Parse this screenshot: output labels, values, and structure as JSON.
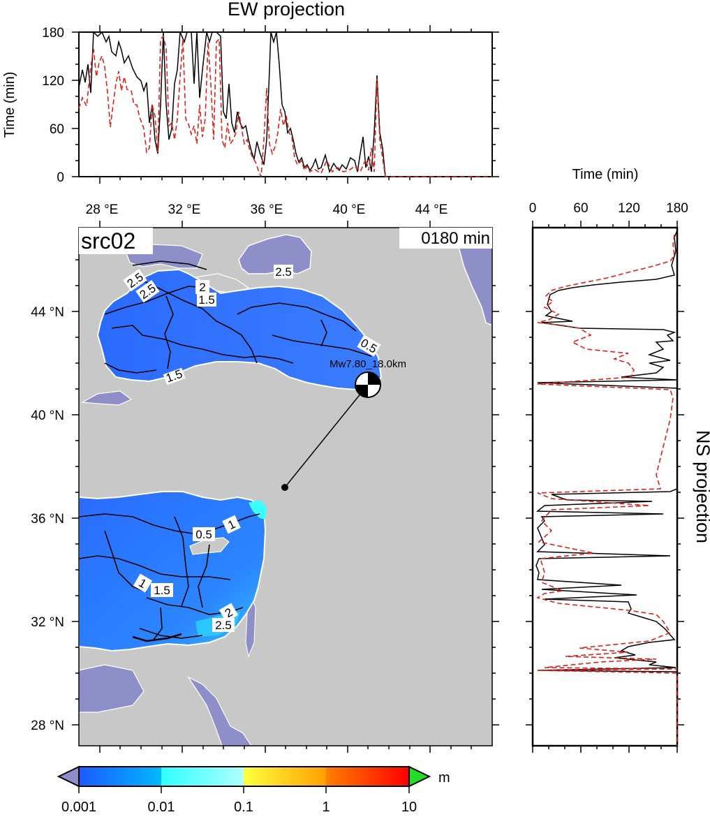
{
  "ew_panel": {
    "title": "EW projection",
    "ylabel": "Time (min)",
    "yticks": [
      "0",
      "60",
      "120",
      "180"
    ],
    "xticks": [
      "28 °E",
      "32 °E",
      "36 °E",
      "40 °E",
      "44 °E"
    ]
  },
  "ns_panel": {
    "title": "NS projection",
    "xlabel": "Time (min)",
    "xticks": [
      "0",
      "60",
      "120",
      "180"
    ]
  },
  "map": {
    "source_label": "src02",
    "time_label": "0180 min",
    "lat_ticks": [
      "44 °N",
      "40 °N",
      "36 °N",
      "32 °N",
      "28 °N"
    ],
    "event_label": "Mw7.80_18.0km",
    "contour_labels": [
      "2.5",
      "2.5",
      "2",
      "1.5",
      "2.5",
      "0.5",
      "1.5",
      "0.5",
      "1",
      "1",
      "1.5",
      "2",
      "2.5"
    ],
    "colors": {
      "land": "#c8c8c8",
      "low_water": "#8e8ec8",
      "sea_blue": "#2c7cff",
      "sea_cyan": "#3affff"
    }
  },
  "colorbar": {
    "ticks": [
      "0.001",
      "0.01",
      "0.1",
      "1",
      "10"
    ],
    "unit": "m",
    "colors": [
      "#1e5aff",
      "#00c0ff",
      "#40ffff",
      "#ffff40",
      "#ff8000",
      "#ff0000"
    ]
  }
}
